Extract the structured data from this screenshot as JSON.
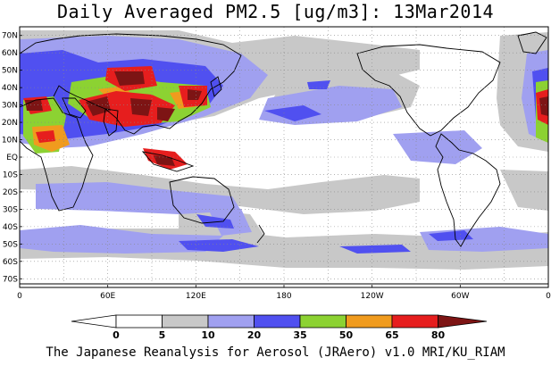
{
  "title": "Daily Averaged PM2.5 [ug/m3]: 13Mar2014",
  "footer": "The Japanese Reanalysis for Aerosol (JRAero) v1.0 MRI/KU_RIAM",
  "map": {
    "lon_range": [
      0,
      360
    ],
    "lat_range": [
      -75,
      75
    ],
    "lat_labels": [
      "70N",
      "60N",
      "50N",
      "40N",
      "30N",
      "20N",
      "10N",
      "EQ",
      "10S",
      "20S",
      "30S",
      "40S",
      "50S",
      "60S",
      "70S"
    ],
    "lon_labels": [
      "0",
      "60E",
      "120E",
      "180",
      "120W",
      "60W",
      "0"
    ],
    "grid": true,
    "land_color": "#ffffff",
    "coastline_color": "#000000"
  },
  "legend": {
    "ticks": [
      "0",
      "5",
      "10",
      "20",
      "35",
      "50",
      "65",
      "80"
    ],
    "bins": [
      {
        "range": "<0",
        "color": "#ffffff"
      },
      {
        "range": "0-5",
        "color": "#ffffff"
      },
      {
        "range": "5-10",
        "color": "#c8c8c8"
      },
      {
        "range": "10-20",
        "color": "#a0a0f0"
      },
      {
        "range": "20-35",
        "color": "#5050f0"
      },
      {
        "range": "35-50",
        "color": "#8cd232"
      },
      {
        "range": "50-65",
        "color": "#f09b1e"
      },
      {
        "range": "65-80",
        "color": "#e61e1e"
      },
      {
        "range": ">80",
        "color": "#7d1414"
      }
    ]
  }
}
